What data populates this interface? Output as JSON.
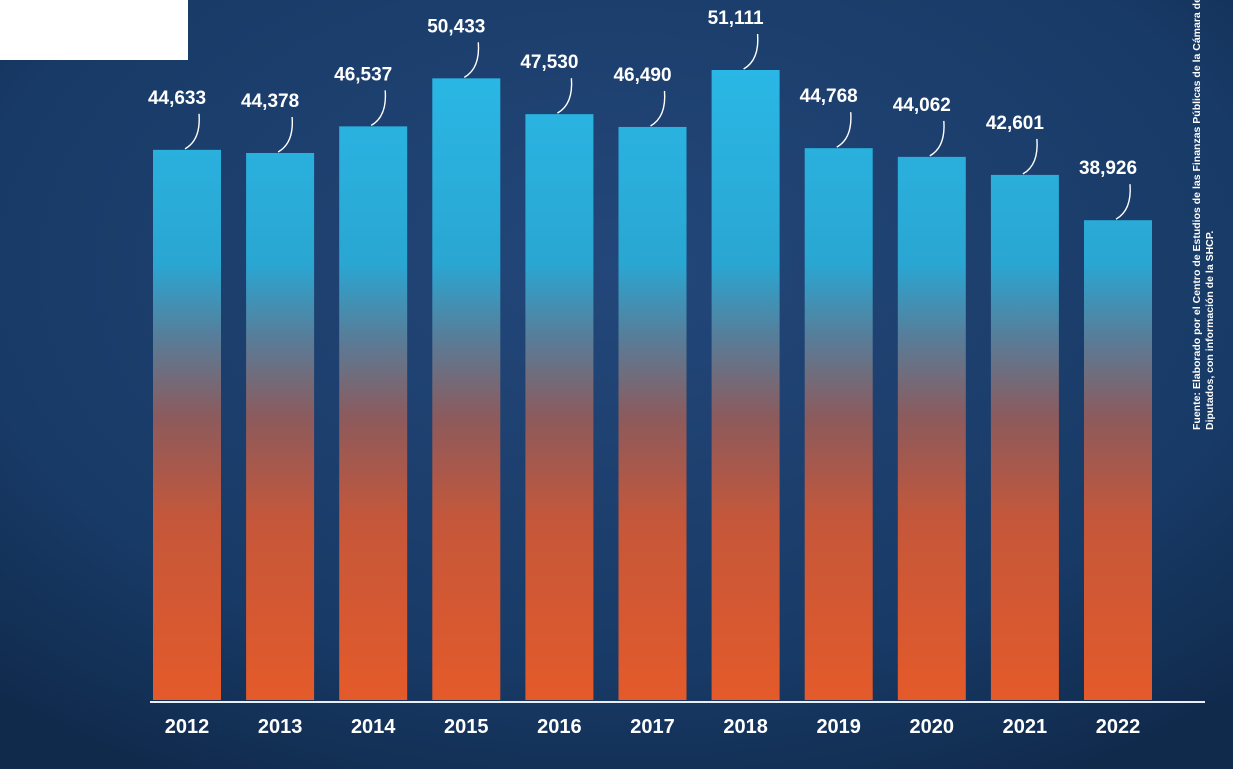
{
  "chart_data": {
    "type": "bar",
    "categories": [
      "2012",
      "2013",
      "2014",
      "2015",
      "2016",
      "2017",
      "2018",
      "2019",
      "2020",
      "2021",
      "2022"
    ],
    "values": [
      44633,
      44378,
      46537,
      50433,
      47530,
      46490,
      51111,
      44768,
      44062,
      42601,
      38926
    ],
    "value_labels": [
      "44,633",
      "44,378",
      "46,537",
      "50,433",
      "47,530",
      "46,490",
      "51,111",
      "44,768",
      "44,062",
      "42,601",
      "38,926"
    ],
    "ylim": [
      0,
      52000
    ],
    "grid": false,
    "legend": "none",
    "colors": {
      "bar_top": "#29b5e3",
      "bar_mid": "#8a5560",
      "bar_bottom": "#e2562a",
      "background": "#16355f",
      "text": "#ffffff"
    }
  },
  "source_note": "Fuente: Elaborado por el Centro de Estudios de las Finanzas Públicas de la Cámara de Diputados, con información de la SHCP."
}
